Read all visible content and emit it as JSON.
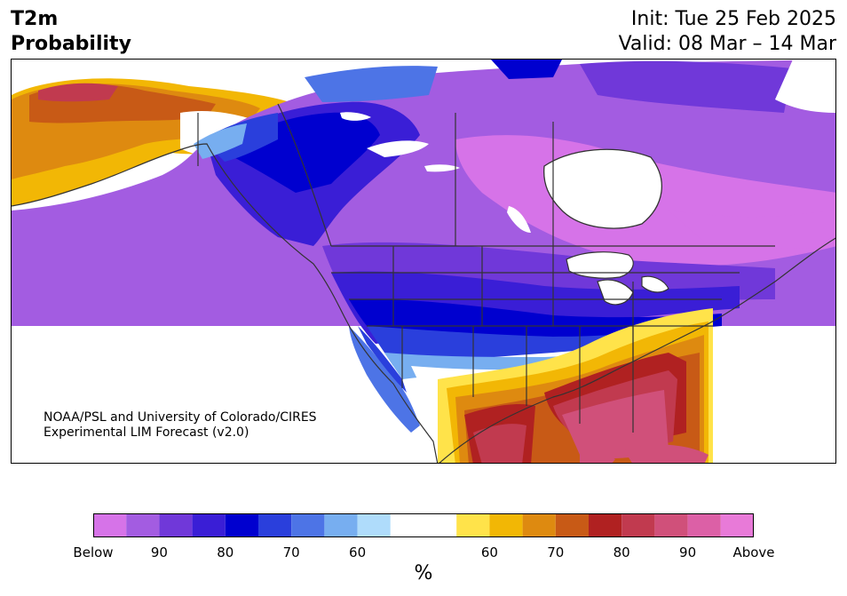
{
  "header": {
    "title_line1": "T2m",
    "title_line2": "Probability",
    "init": "Init: Tue 25 Feb 2025",
    "valid": "Valid: 08 Mar – 14 Mar"
  },
  "credit": {
    "line1": "NOAA/PSL and University of Colorado/CIRES",
    "line2": "Experimental LIM Forecast (v2.0)"
  },
  "colorbar": {
    "unit": "%",
    "labels": [
      "Below",
      "90",
      "80",
      "70",
      "60",
      "60",
      "70",
      "80",
      "90",
      "Above"
    ],
    "below_colors": [
      "#d673e8",
      "#a35ce1",
      "#7038d9",
      "#3a1ed6",
      "#0000cf",
      "#2a3fdc",
      "#4d74e6",
      "#77aef0",
      "#afdcfb"
    ],
    "neutral_color": "#ffffff",
    "above_colors": [
      "#ffe34a",
      "#f2b705",
      "#de8a10",
      "#c85a16",
      "#b02121",
      "#c13a4f",
      "#d0507a",
      "#dc60a6",
      "#e87ad8"
    ]
  },
  "map": {
    "region": "North America",
    "palette": {
      "cold_strong": "#d673e8",
      "cold_mid": "#a35ce1",
      "cold_deep": "#0000cf",
      "cold_light": "#afdcfb",
      "warm_light": "#ffe34a",
      "warm_mid": "#de8a10",
      "warm_strong": "#b02121",
      "warm_pink": "#d0507a"
    }
  }
}
